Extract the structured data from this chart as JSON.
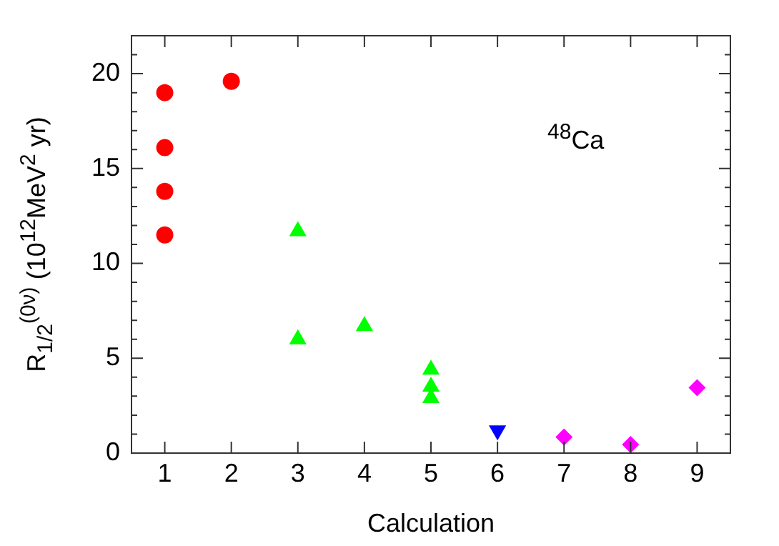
{
  "chart_data": {
    "type": "scatter",
    "xlabel": "Calculation",
    "ylabel": "R$_{1/2}$$^{(0ν)}$ (10$^{12}$MeV$^{2}$ yr)",
    "annotations": [
      "$^{48}$Ca"
    ],
    "xlim": [
      0.5,
      9.5
    ],
    "xticks": [
      1,
      2,
      3,
      4,
      5,
      6,
      7,
      8,
      9
    ],
    "ylim": [
      0,
      22
    ],
    "yticks": [
      0,
      5,
      10,
      15,
      20
    ],
    "grid": false,
    "legend": false,
    "series": [
      {
        "color": "#ff0000",
        "marker": "circle",
        "x": [
          1,
          1,
          1,
          1,
          2
        ],
        "values": [
          19.0,
          16.1,
          13.8,
          11.5,
          19.6
        ]
      },
      {
        "color": "#00ff00",
        "marker": "triangle",
        "x": [
          3,
          3,
          4,
          5,
          5,
          5
        ],
        "values": [
          11.7,
          6.0,
          6.7,
          4.4,
          3.5,
          2.9
        ]
      },
      {
        "color": "#0000ff",
        "marker": "triangle-down",
        "x": [
          6
        ],
        "values": [
          1.2
        ]
      },
      {
        "color": "#ff00ff",
        "marker": "diamond",
        "x": [
          7,
          8,
          9
        ],
        "values": [
          0.85,
          0.45,
          3.45
        ]
      }
    ]
  }
}
